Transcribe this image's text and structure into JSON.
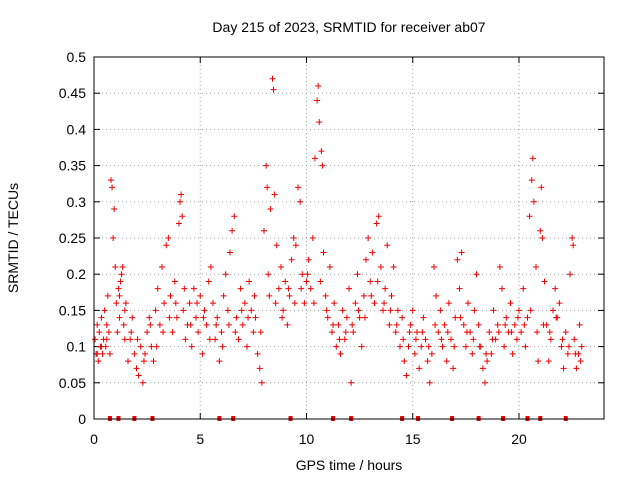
{
  "chart_data": {
    "type": "scatter",
    "title": "Day 215 of 2023, SRMTID for receiver ab07",
    "xlabel": "GPS time / hours",
    "ylabel": "SRMTID / TECUs",
    "xlim": [
      0,
      24
    ],
    "ylim": [
      0,
      0.5
    ],
    "xticks": [
      0,
      5,
      10,
      15,
      20
    ],
    "yticks": [
      0,
      0.05,
      0.1,
      0.15,
      0.2,
      0.25,
      0.3,
      0.35,
      0.4,
      0.45,
      0.5
    ],
    "xtick_labels": [
      "0",
      "5",
      "10",
      "15",
      "20"
    ],
    "ytick_labels": [
      "0",
      "0.05",
      "0.1",
      "0.15",
      "0.2",
      "0.25",
      "0.3",
      "0.35",
      "0.4",
      "0.45",
      "0.5"
    ],
    "grid": true,
    "marker": "+",
    "series_color": "#ee0000",
    "baseline_markers_x": [
      0.75,
      1.15,
      1.9,
      2.75,
      5.9,
      6.55,
      9.25,
      11.25,
      12.1,
      14.5,
      15.25,
      16.85,
      18.1,
      19.25,
      20.4,
      21.0,
      22.2
    ],
    "points": [
      [
        0.05,
        0.11
      ],
      [
        0.1,
        0.09
      ],
      [
        0.15,
        0.13
      ],
      [
        0.2,
        0.08
      ],
      [
        0.25,
        0.12
      ],
      [
        0.3,
        0.1
      ],
      [
        0.35,
        0.14
      ],
      [
        0.4,
        0.09
      ],
      [
        0.45,
        0.11
      ],
      [
        0.5,
        0.15
      ],
      [
        0.55,
        0.1
      ],
      [
        0.6,
        0.13
      ],
      [
        0.65,
        0.17
      ],
      [
        0.7,
        0.12
      ],
      [
        0.75,
        0.09
      ],
      [
        0.8,
        0.33
      ],
      [
        0.85,
        0.32
      ],
      [
        0.9,
        0.25
      ],
      [
        0.95,
        0.29
      ],
      [
        1.0,
        0.21
      ],
      [
        1.05,
        0.16
      ],
      [
        1.1,
        0.12
      ],
      [
        1.15,
        0.18
      ],
      [
        1.2,
        0.14
      ],
      [
        1.25,
        0.19
      ],
      [
        1.3,
        0.2
      ],
      [
        1.35,
        0.21
      ],
      [
        1.4,
        0.13
      ],
      [
        1.45,
        0.11
      ],
      [
        1.5,
        0.16
      ],
      [
        1.6,
        0.08
      ],
      [
        1.7,
        0.11
      ],
      [
        1.8,
        0.14
      ],
      [
        1.9,
        0.09
      ],
      [
        2.0,
        0.07
      ],
      [
        2.1,
        0.06
      ],
      [
        2.2,
        0.1
      ],
      [
        2.3,
        0.05
      ],
      [
        2.4,
        0.09
      ],
      [
        2.5,
        0.12
      ],
      [
        2.6,
        0.14
      ],
      [
        2.7,
        0.1
      ],
      [
        2.8,
        0.08
      ],
      [
        2.9,
        0.15
      ],
      [
        3.0,
        0.18
      ],
      [
        3.1,
        0.13
      ],
      [
        3.2,
        0.21
      ],
      [
        3.3,
        0.16
      ],
      [
        3.4,
        0.24
      ],
      [
        3.5,
        0.25
      ],
      [
        3.6,
        0.17
      ],
      [
        3.7,
        0.12
      ],
      [
        3.8,
        0.19
      ],
      [
        3.9,
        0.14
      ],
      [
        4.0,
        0.27
      ],
      [
        4.05,
        0.3
      ],
      [
        4.1,
        0.31
      ],
      [
        4.15,
        0.28
      ],
      [
        4.2,
        0.15
      ],
      [
        4.3,
        0.11
      ],
      [
        4.4,
        0.13
      ],
      [
        4.5,
        0.16
      ],
      [
        4.6,
        0.1
      ],
      [
        4.7,
        0.18
      ],
      [
        4.8,
        0.14
      ],
      [
        4.9,
        0.12
      ],
      [
        5.0,
        0.17
      ],
      [
        5.1,
        0.09
      ],
      [
        5.2,
        0.15
      ],
      [
        5.3,
        0.13
      ],
      [
        5.4,
        0.19
      ],
      [
        5.5,
        0.21
      ],
      [
        5.6,
        0.16
      ],
      [
        5.7,
        0.11
      ],
      [
        5.8,
        0.14
      ],
      [
        5.9,
        0.08
      ],
      [
        6.0,
        0.12
      ],
      [
        6.1,
        0.17
      ],
      [
        6.2,
        0.2
      ],
      [
        6.3,
        0.15
      ],
      [
        6.4,
        0.23
      ],
      [
        6.5,
        0.26
      ],
      [
        6.6,
        0.28
      ],
      [
        6.7,
        0.14
      ],
      [
        6.8,
        0.11
      ],
      [
        6.9,
        0.18
      ],
      [
        7.0,
        0.13
      ],
      [
        7.1,
        0.16
      ],
      [
        7.2,
        0.1
      ],
      [
        7.3,
        0.19
      ],
      [
        7.4,
        0.15
      ],
      [
        7.5,
        0.12
      ],
      [
        7.6,
        0.14
      ],
      [
        7.7,
        0.09
      ],
      [
        7.8,
        0.07
      ],
      [
        7.9,
        0.05
      ],
      [
        8.0,
        0.26
      ],
      [
        8.1,
        0.35
      ],
      [
        8.15,
        0.32
      ],
      [
        8.2,
        0.2
      ],
      [
        8.3,
        0.29
      ],
      [
        8.4,
        0.47
      ],
      [
        8.45,
        0.455
      ],
      [
        8.5,
        0.31
      ],
      [
        8.6,
        0.24
      ],
      [
        8.7,
        0.18
      ],
      [
        8.8,
        0.21
      ],
      [
        8.9,
        0.15
      ],
      [
        9.0,
        0.19
      ],
      [
        9.1,
        0.13
      ],
      [
        9.2,
        0.17
      ],
      [
        9.3,
        0.22
      ],
      [
        9.4,
        0.25
      ],
      [
        9.5,
        0.24
      ],
      [
        9.6,
        0.32
      ],
      [
        9.7,
        0.3
      ],
      [
        9.8,
        0.2
      ],
      [
        9.9,
        0.16
      ],
      [
        10.0,
        0.19
      ],
      [
        10.1,
        0.22
      ],
      [
        10.2,
        0.18
      ],
      [
        10.3,
        0.25
      ],
      [
        10.4,
        0.36
      ],
      [
        10.5,
        0.44
      ],
      [
        10.55,
        0.46
      ],
      [
        10.6,
        0.41
      ],
      [
        10.7,
        0.37
      ],
      [
        10.75,
        0.35
      ],
      [
        10.8,
        0.23
      ],
      [
        10.9,
        0.17
      ],
      [
        11.0,
        0.14
      ],
      [
        11.1,
        0.21
      ],
      [
        11.2,
        0.12
      ],
      [
        11.3,
        0.16
      ],
      [
        11.4,
        0.1
      ],
      [
        11.5,
        0.13
      ],
      [
        11.6,
        0.09
      ],
      [
        11.7,
        0.15
      ],
      [
        11.8,
        0.11
      ],
      [
        11.9,
        0.14
      ],
      [
        12.0,
        0.18
      ],
      [
        12.1,
        0.05
      ],
      [
        12.2,
        0.12
      ],
      [
        12.3,
        0.16
      ],
      [
        12.4,
        0.2
      ],
      [
        12.5,
        0.14
      ],
      [
        12.6,
        0.1
      ],
      [
        12.7,
        0.17
      ],
      [
        12.8,
        0.22
      ],
      [
        12.9,
        0.25
      ],
      [
        13.0,
        0.19
      ],
      [
        13.1,
        0.23
      ],
      [
        13.2,
        0.16
      ],
      [
        13.3,
        0.27
      ],
      [
        13.4,
        0.28
      ],
      [
        13.5,
        0.21
      ],
      [
        13.6,
        0.15
      ],
      [
        13.7,
        0.18
      ],
      [
        13.8,
        0.24
      ],
      [
        13.9,
        0.13
      ],
      [
        14.0,
        0.17
      ],
      [
        14.1,
        0.21
      ],
      [
        14.2,
        0.12
      ],
      [
        14.3,
        0.15
      ],
      [
        14.4,
        0.1
      ],
      [
        14.5,
        0.14
      ],
      [
        14.6,
        0.08
      ],
      [
        14.7,
        0.06
      ],
      [
        14.8,
        0.1
      ],
      [
        14.9,
        0.13
      ],
      [
        15.0,
        0.15
      ],
      [
        15.1,
        0.09
      ],
      [
        15.2,
        0.12
      ],
      [
        15.3,
        0.07
      ],
      [
        15.4,
        0.1
      ],
      [
        15.5,
        0.14
      ],
      [
        15.6,
        0.11
      ],
      [
        15.7,
        0.08
      ],
      [
        15.8,
        0.05
      ],
      [
        15.9,
        0.09
      ],
      [
        16.0,
        0.21
      ],
      [
        16.1,
        0.17
      ],
      [
        16.2,
        0.12
      ],
      [
        16.3,
        0.15
      ],
      [
        16.4,
        0.1
      ],
      [
        16.5,
        0.13
      ],
      [
        16.6,
        0.08
      ],
      [
        16.7,
        0.16
      ],
      [
        16.8,
        0.11
      ],
      [
        16.9,
        0.07
      ],
      [
        17.0,
        0.14
      ],
      [
        17.1,
        0.22
      ],
      [
        17.2,
        0.18
      ],
      [
        17.3,
        0.23
      ],
      [
        17.4,
        0.13
      ],
      [
        17.5,
        0.1
      ],
      [
        17.6,
        0.16
      ],
      [
        17.7,
        0.12
      ],
      [
        17.8,
        0.09
      ],
      [
        17.9,
        0.15
      ],
      [
        18.0,
        0.2
      ],
      [
        18.1,
        0.13
      ],
      [
        18.2,
        0.1
      ],
      [
        18.3,
        0.07
      ],
      [
        18.4,
        0.05
      ],
      [
        18.5,
        0.08
      ],
      [
        18.6,
        0.12
      ],
      [
        18.7,
        0.09
      ],
      [
        18.8,
        0.15
      ],
      [
        18.9,
        0.11
      ],
      [
        19.0,
        0.13
      ],
      [
        19.1,
        0.21
      ],
      [
        19.2,
        0.18
      ],
      [
        19.3,
        0.1
      ],
      [
        19.4,
        0.14
      ],
      [
        19.5,
        0.12
      ],
      [
        19.6,
        0.16
      ],
      [
        19.7,
        0.09
      ],
      [
        19.8,
        0.13
      ],
      [
        19.9,
        0.11
      ],
      [
        20.0,
        0.15
      ],
      [
        20.1,
        0.12
      ],
      [
        20.2,
        0.18
      ],
      [
        20.3,
        0.1
      ],
      [
        20.4,
        0.14
      ],
      [
        20.5,
        0.28
      ],
      [
        20.6,
        0.33
      ],
      [
        20.65,
        0.36
      ],
      [
        20.7,
        0.3
      ],
      [
        20.8,
        0.21
      ],
      [
        20.9,
        0.08
      ],
      [
        21.0,
        0.26
      ],
      [
        21.05,
        0.32
      ],
      [
        21.1,
        0.25
      ],
      [
        21.2,
        0.19
      ],
      [
        21.3,
        0.13
      ],
      [
        21.4,
        0.08
      ],
      [
        21.5,
        0.11
      ],
      [
        21.6,
        0.15
      ],
      [
        21.7,
        0.18
      ],
      [
        21.8,
        0.14
      ],
      [
        21.9,
        0.16
      ],
      [
        22.0,
        0.1
      ],
      [
        22.1,
        0.07
      ],
      [
        22.2,
        0.12
      ],
      [
        22.3,
        0.09
      ],
      [
        22.4,
        0.2
      ],
      [
        22.5,
        0.25
      ],
      [
        22.55,
        0.24
      ],
      [
        22.6,
        0.11
      ],
      [
        22.7,
        0.07
      ],
      [
        22.8,
        0.09
      ],
      [
        22.85,
        0.13
      ],
      [
        22.9,
        0.08
      ],
      [
        0.15,
        0.09
      ],
      [
        0.35,
        0.1
      ],
      [
        0.6,
        0.11
      ],
      [
        1.2,
        0.17
      ],
      [
        1.45,
        0.15
      ],
      [
        1.75,
        0.12
      ],
      [
        2.05,
        0.11
      ],
      [
        2.35,
        0.08
      ],
      [
        2.65,
        0.13
      ],
      [
        2.95,
        0.1
      ],
      [
        3.25,
        0.12
      ],
      [
        3.55,
        0.14
      ],
      [
        3.85,
        0.16
      ],
      [
        4.25,
        0.18
      ],
      [
        4.55,
        0.13
      ],
      [
        4.85,
        0.16
      ],
      [
        5.15,
        0.14
      ],
      [
        5.45,
        0.11
      ],
      [
        5.75,
        0.13
      ],
      [
        6.05,
        0.1
      ],
      [
        6.35,
        0.13
      ],
      [
        6.65,
        0.12
      ],
      [
        6.95,
        0.15
      ],
      [
        7.25,
        0.14
      ],
      [
        7.55,
        0.17
      ],
      [
        7.85,
        0.12
      ],
      [
        8.25,
        0.17
      ],
      [
        8.55,
        0.16
      ],
      [
        8.85,
        0.14
      ],
      [
        9.15,
        0.18
      ],
      [
        9.45,
        0.16
      ],
      [
        9.75,
        0.18
      ],
      [
        10.05,
        0.2
      ],
      [
        10.35,
        0.16
      ],
      [
        10.65,
        0.19
      ],
      [
        10.95,
        0.15
      ],
      [
        11.25,
        0.13
      ],
      [
        11.55,
        0.11
      ],
      [
        11.85,
        0.12
      ],
      [
        12.15,
        0.13
      ],
      [
        12.45,
        0.15
      ],
      [
        12.75,
        0.14
      ],
      [
        13.05,
        0.17
      ],
      [
        13.35,
        0.19
      ],
      [
        13.65,
        0.16
      ],
      [
        13.95,
        0.15
      ],
      [
        14.25,
        0.13
      ],
      [
        14.55,
        0.11
      ],
      [
        14.85,
        0.12
      ],
      [
        15.15,
        0.11
      ],
      [
        15.45,
        0.12
      ],
      [
        15.75,
        0.1
      ],
      [
        16.05,
        0.13
      ],
      [
        16.35,
        0.11
      ],
      [
        16.65,
        0.12
      ],
      [
        16.95,
        0.1
      ],
      [
        17.25,
        0.14
      ],
      [
        17.55,
        0.12
      ],
      [
        17.85,
        0.11
      ],
      [
        18.15,
        0.1
      ],
      [
        18.45,
        0.09
      ],
      [
        18.75,
        0.11
      ],
      [
        19.05,
        0.12
      ],
      [
        19.35,
        0.13
      ],
      [
        19.65,
        0.12
      ],
      [
        19.95,
        0.14
      ],
      [
        20.25,
        0.13
      ],
      [
        20.55,
        0.15
      ],
      [
        20.85,
        0.12
      ],
      [
        21.15,
        0.13
      ],
      [
        21.45,
        0.12
      ],
      [
        21.75,
        0.14
      ],
      [
        22.05,
        0.11
      ],
      [
        22.35,
        0.1
      ],
      [
        22.65,
        0.09
      ],
      [
        22.95,
        0.1
      ]
    ]
  }
}
